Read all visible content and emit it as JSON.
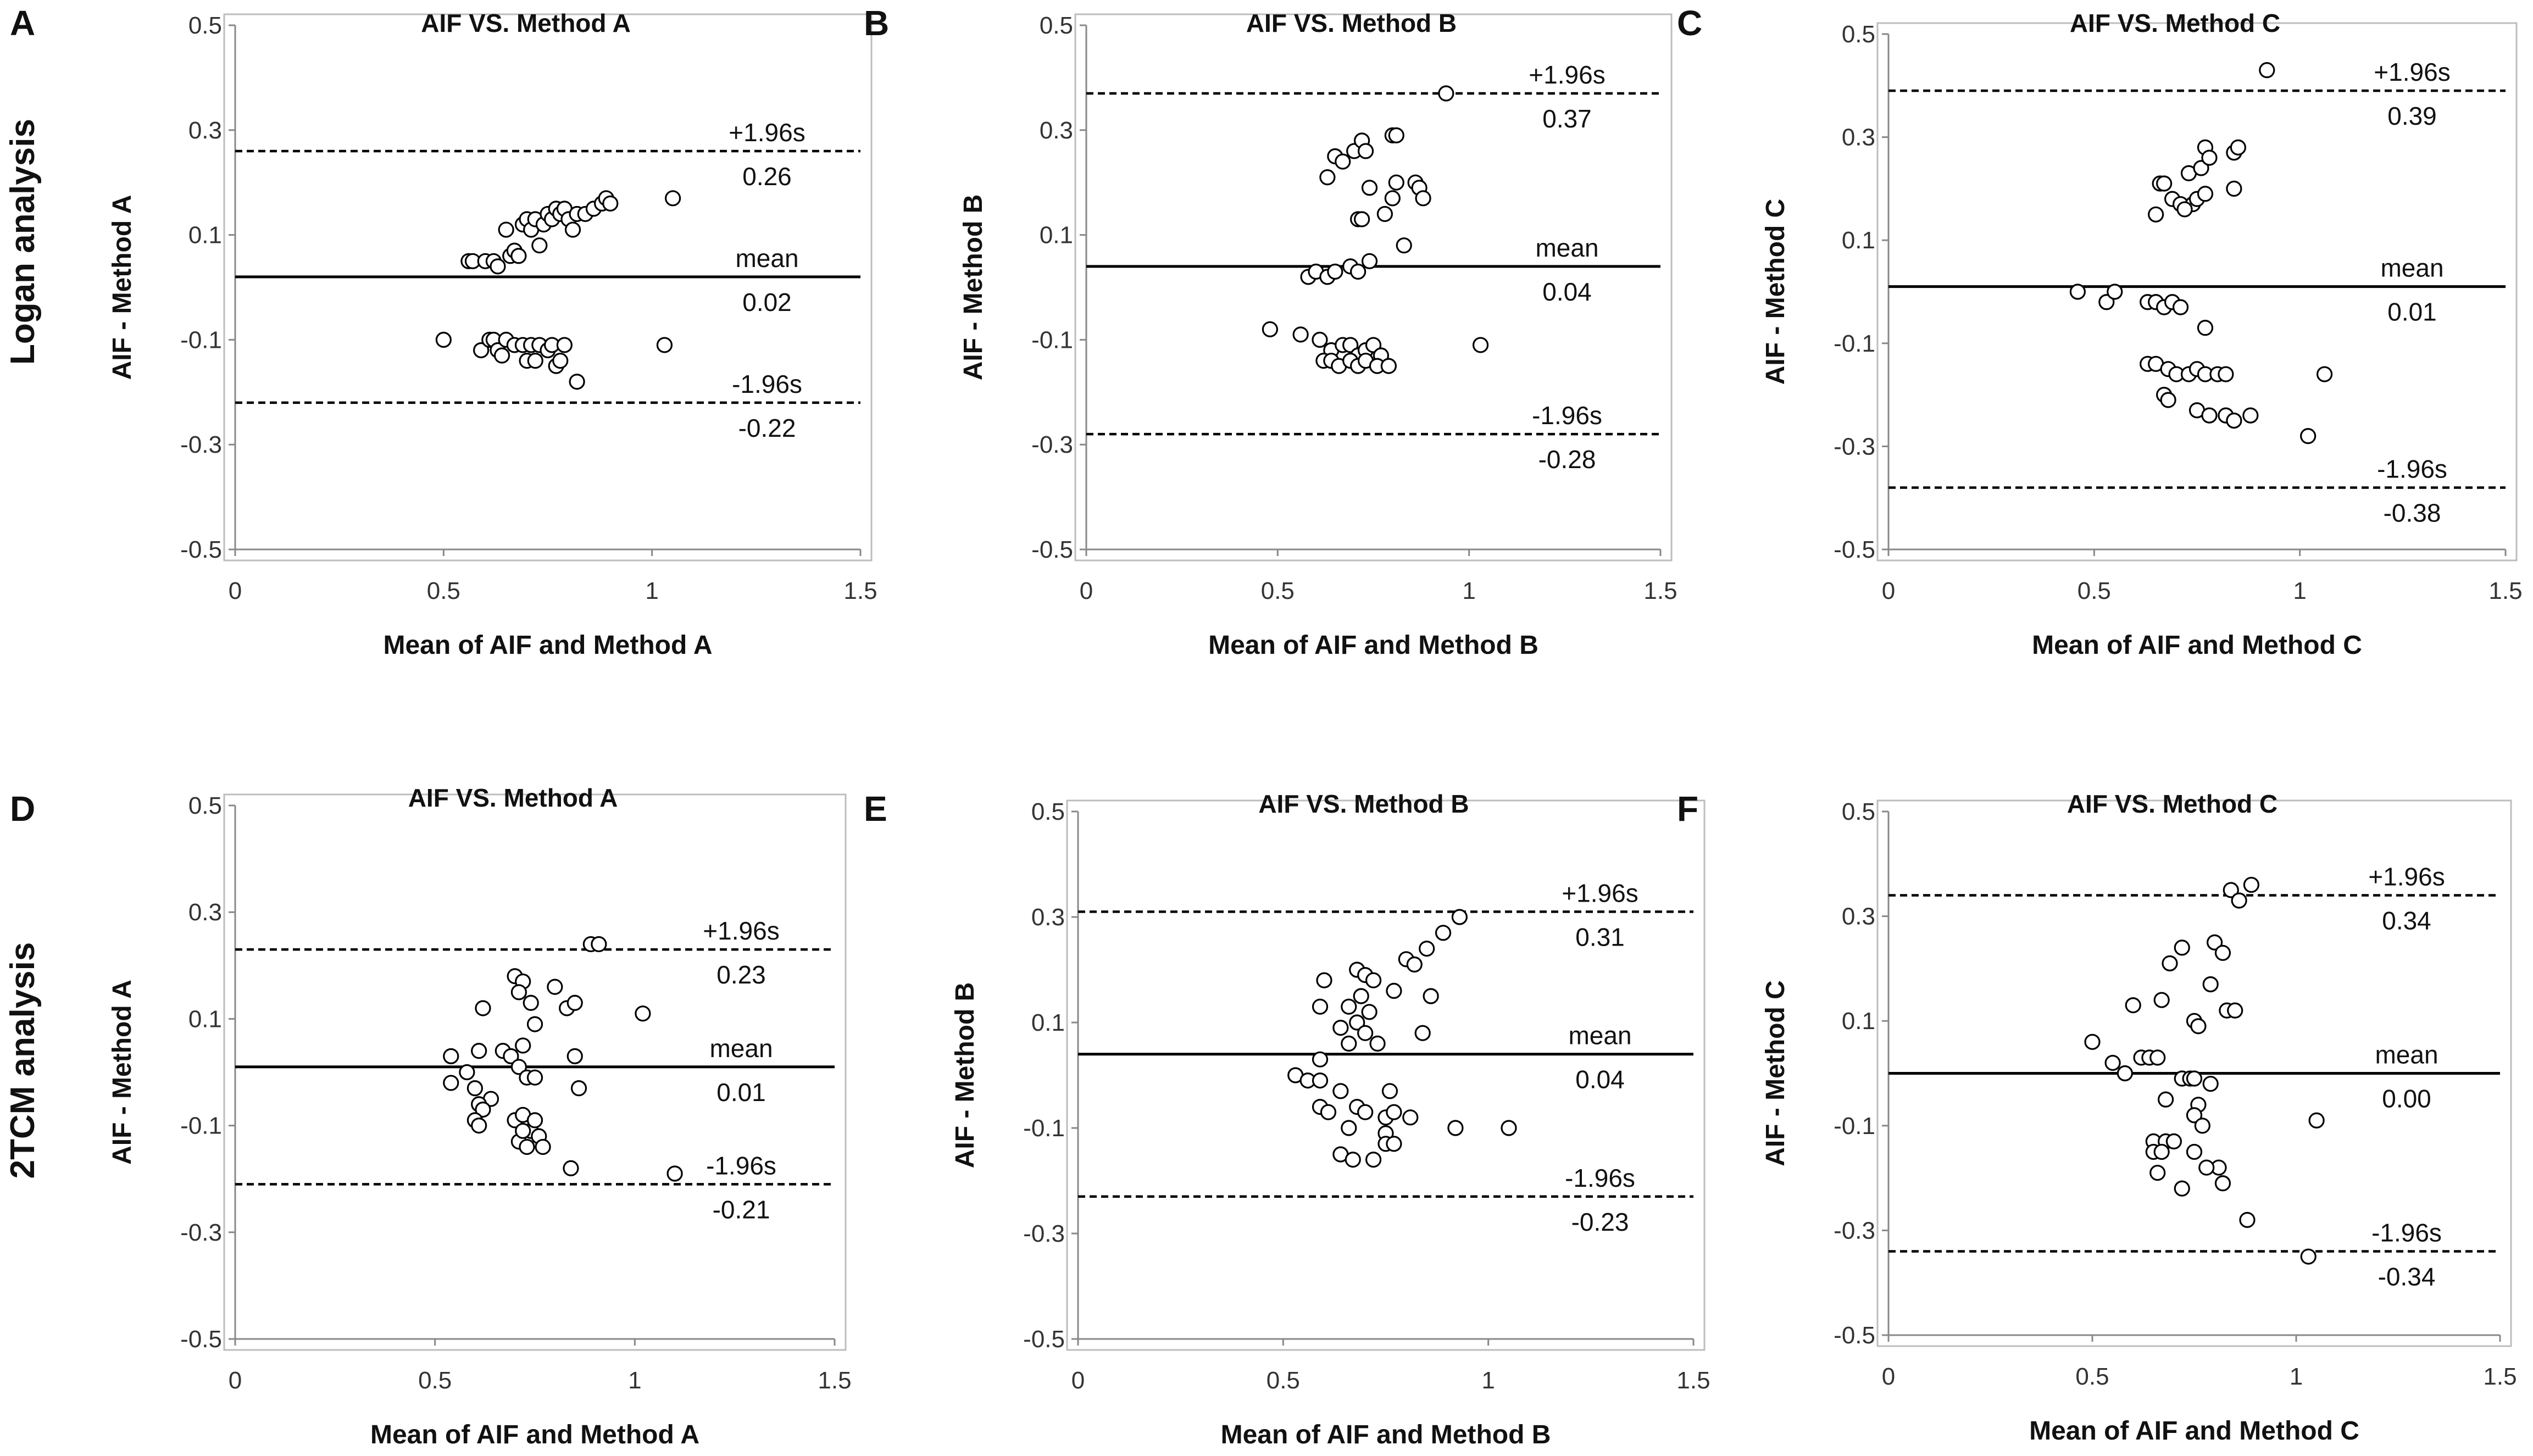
{
  "figure": {
    "row_labels": [
      "Logan analysis",
      "2TCM analysis"
    ]
  },
  "chart_data": [
    {
      "panel": "A",
      "type": "scatter",
      "row": "Logan analysis",
      "title": "AIF  VS. Method A",
      "xlabel": "Mean of AIF and Method A",
      "ylabel": "AIF - Method A",
      "xlim": [
        0,
        1.5
      ],
      "ylim": [
        -0.5,
        0.5
      ],
      "xticks": [
        "0",
        "0.5",
        "1",
        "1.5"
      ],
      "yticks": [
        "0.5",
        "0.3",
        "0.1",
        "-0.1",
        "-0.3",
        "-0.5"
      ],
      "mean": 0.02,
      "upper": 0.26,
      "lower": -0.22,
      "labels": {
        "upper": "+1.96s",
        "mean": "mean",
        "lower": "-1.96s",
        "upper_value": "0.26",
        "mean_value": "0.02",
        "lower_value": "-0.22"
      },
      "points": [
        [
          0.56,
          0.05
        ],
        [
          0.57,
          0.05
        ],
        [
          0.6,
          0.05
        ],
        [
          0.62,
          0.05
        ],
        [
          0.63,
          0.04
        ],
        [
          0.65,
          0.11
        ],
        [
          0.66,
          0.06
        ],
        [
          0.67,
          0.07
        ],
        [
          0.68,
          0.06
        ],
        [
          0.69,
          0.12
        ],
        [
          0.7,
          0.13
        ],
        [
          0.71,
          0.11
        ],
        [
          0.72,
          0.13
        ],
        [
          0.73,
          0.08
        ],
        [
          0.74,
          0.12
        ],
        [
          0.75,
          0.14
        ],
        [
          0.76,
          0.13
        ],
        [
          0.77,
          0.15
        ],
        [
          0.78,
          0.14
        ],
        [
          0.79,
          0.15
        ],
        [
          0.8,
          0.13
        ],
        [
          0.81,
          0.11
        ],
        [
          0.82,
          0.14
        ],
        [
          0.84,
          0.14
        ],
        [
          0.86,
          0.15
        ],
        [
          0.88,
          0.16
        ],
        [
          0.89,
          0.17
        ],
        [
          0.9,
          0.16
        ],
        [
          1.05,
          0.17
        ],
        [
          0.5,
          -0.1
        ],
        [
          0.59,
          -0.12
        ],
        [
          0.61,
          -0.1
        ],
        [
          0.62,
          -0.1
        ],
        [
          0.63,
          -0.12
        ],
        [
          0.64,
          -0.13
        ],
        [
          0.65,
          -0.1
        ],
        [
          0.67,
          -0.11
        ],
        [
          0.69,
          -0.11
        ],
        [
          0.7,
          -0.14
        ],
        [
          0.71,
          -0.11
        ],
        [
          0.72,
          -0.14
        ],
        [
          0.73,
          -0.11
        ],
        [
          0.75,
          -0.12
        ],
        [
          0.76,
          -0.11
        ],
        [
          0.77,
          -0.15
        ],
        [
          0.78,
          -0.14
        ],
        [
          0.79,
          -0.11
        ],
        [
          0.82,
          -0.18
        ],
        [
          1.03,
          -0.11
        ]
      ]
    },
    {
      "panel": "B",
      "type": "scatter",
      "row": "Logan analysis",
      "title": "AIF  VS. Method B",
      "xlabel": "Mean of AIF and Method B",
      "ylabel": "AIF - Method B",
      "xlim": [
        0,
        1.5
      ],
      "ylim": [
        -0.5,
        0.5
      ],
      "xticks": [
        "0",
        "0.5",
        "1",
        "1.5"
      ],
      "yticks": [
        "0.5",
        "0.3",
        "0.1",
        "-0.1",
        "-0.3",
        "-0.5"
      ],
      "mean": 0.04,
      "upper": 0.37,
      "lower": -0.28,
      "labels": {
        "upper": "+1.96s",
        "mean": "mean",
        "lower": "-1.96s",
        "upper_value": "0.37",
        "mean_value": "0.04",
        "lower_value": "-0.28"
      },
      "points": [
        [
          0.94,
          0.37
        ],
        [
          0.63,
          0.21
        ],
        [
          0.65,
          0.25
        ],
        [
          0.67,
          0.24
        ],
        [
          0.7,
          0.26
        ],
        [
          0.72,
          0.28
        ],
        [
          0.73,
          0.26
        ],
        [
          0.8,
          0.29
        ],
        [
          0.81,
          0.29
        ],
        [
          0.74,
          0.19
        ],
        [
          0.78,
          0.14
        ],
        [
          0.8,
          0.17
        ],
        [
          0.81,
          0.2
        ],
        [
          0.86,
          0.2
        ],
        [
          0.87,
          0.19
        ],
        [
          0.88,
          0.17
        ],
        [
          0.71,
          0.13
        ],
        [
          0.72,
          0.13
        ],
        [
          0.83,
          0.08
        ],
        [
          0.58,
          0.02
        ],
        [
          0.6,
          0.03
        ],
        [
          0.63,
          0.02
        ],
        [
          0.65,
          0.03
        ],
        [
          0.69,
          0.04
        ],
        [
          0.71,
          0.03
        ],
        [
          0.74,
          0.05
        ],
        [
          0.48,
          -0.08
        ],
        [
          0.56,
          -0.09
        ],
        [
          0.61,
          -0.1
        ],
        [
          0.64,
          -0.12
        ],
        [
          0.67,
          -0.11
        ],
        [
          0.69,
          -0.11
        ],
        [
          0.71,
          -0.13
        ],
        [
          0.73,
          -0.12
        ],
        [
          0.75,
          -0.11
        ],
        [
          0.77,
          -0.13
        ],
        [
          0.62,
          -0.14
        ],
        [
          0.64,
          -0.14
        ],
        [
          0.66,
          -0.15
        ],
        [
          0.69,
          -0.14
        ],
        [
          0.71,
          -0.15
        ],
        [
          0.73,
          -0.14
        ],
        [
          0.76,
          -0.15
        ],
        [
          0.79,
          -0.15
        ],
        [
          1.03,
          -0.11
        ]
      ]
    },
    {
      "panel": "C",
      "type": "scatter",
      "row": "Logan analysis",
      "title": "AIF  VS. Method C",
      "xlabel": "Mean of AIF and Method C",
      "ylabel": "AIF - Method C",
      "xlim": [
        0,
        1.5
      ],
      "ylim": [
        -0.5,
        0.5
      ],
      "xticks": [
        "0",
        "0.5",
        "1",
        "1.5"
      ],
      "yticks": [
        "0.5",
        "0.3",
        "0.1",
        "-0.1",
        "-0.3",
        "-0.5"
      ],
      "mean": 0.01,
      "upper": 0.39,
      "lower": -0.38,
      "labels": {
        "upper": "+1.96s",
        "mean": "mean",
        "lower": "-1.96s",
        "upper_value": "0.39",
        "mean_value": "0.01",
        "lower_value": "-0.38"
      },
      "points": [
        [
          0.92,
          0.43
        ],
        [
          0.77,
          0.28
        ],
        [
          0.84,
          0.27
        ],
        [
          0.85,
          0.28
        ],
        [
          0.66,
          0.21
        ],
        [
          0.67,
          0.21
        ],
        [
          0.73,
          0.23
        ],
        [
          0.76,
          0.24
        ],
        [
          0.78,
          0.26
        ],
        [
          0.69,
          0.18
        ],
        [
          0.71,
          0.17
        ],
        [
          0.74,
          0.17
        ],
        [
          0.75,
          0.18
        ],
        [
          0.77,
          0.19
        ],
        [
          0.84,
          0.2
        ],
        [
          0.65,
          0.15
        ],
        [
          0.72,
          0.16
        ],
        [
          0.46,
          0.0
        ],
        [
          0.53,
          -0.02
        ],
        [
          0.55,
          0.0
        ],
        [
          0.63,
          -0.02
        ],
        [
          0.65,
          -0.02
        ],
        [
          0.67,
          -0.03
        ],
        [
          0.69,
          -0.02
        ],
        [
          0.71,
          -0.03
        ],
        [
          0.77,
          -0.07
        ],
        [
          0.63,
          -0.14
        ],
        [
          0.65,
          -0.14
        ],
        [
          0.68,
          -0.15
        ],
        [
          0.7,
          -0.16
        ],
        [
          0.73,
          -0.16
        ],
        [
          0.75,
          -0.15
        ],
        [
          0.77,
          -0.16
        ],
        [
          0.8,
          -0.16
        ],
        [
          0.82,
          -0.16
        ],
        [
          0.67,
          -0.2
        ],
        [
          0.68,
          -0.21
        ],
        [
          0.75,
          -0.23
        ],
        [
          0.78,
          -0.24
        ],
        [
          0.82,
          -0.24
        ],
        [
          0.84,
          -0.25
        ],
        [
          0.88,
          -0.24
        ],
        [
          1.06,
          -0.16
        ],
        [
          1.02,
          -0.28
        ]
      ]
    },
    {
      "panel": "D",
      "type": "scatter",
      "row": "2TCM analysis",
      "title": "AIF  VS. Method A",
      "xlabel": "Mean of AIF and Method A",
      "ylabel": "AIF - Method A",
      "xlim": [
        0,
        1.5
      ],
      "ylim": [
        -0.5,
        0.5
      ],
      "xticks": [
        "0",
        "0.5",
        "1",
        "1.5"
      ],
      "yticks": [
        "0.5",
        "0.3",
        "0.1",
        "-0.1",
        "-0.3",
        "-0.5"
      ],
      "mean": 0.01,
      "upper": 0.23,
      "lower": -0.21,
      "labels": {
        "upper": "+1.96s",
        "mean": "mean",
        "lower": "-1.96s",
        "upper_value": "0.23",
        "mean_value": "0.01",
        "lower_value": "-0.21"
      },
      "points": [
        [
          0.89,
          0.24
        ],
        [
          0.91,
          0.24
        ],
        [
          0.7,
          0.18
        ],
        [
          0.72,
          0.17
        ],
        [
          0.8,
          0.16
        ],
        [
          0.71,
          0.15
        ],
        [
          0.74,
          0.13
        ],
        [
          0.83,
          0.12
        ],
        [
          0.85,
          0.13
        ],
        [
          1.02,
          0.11
        ],
        [
          0.62,
          0.12
        ],
        [
          0.75,
          0.09
        ],
        [
          0.67,
          0.04
        ],
        [
          0.72,
          0.05
        ],
        [
          0.54,
          0.03
        ],
        [
          0.61,
          0.04
        ],
        [
          0.69,
          0.03
        ],
        [
          0.85,
          0.03
        ],
        [
          0.71,
          0.01
        ],
        [
          0.58,
          0.0
        ],
        [
          0.54,
          -0.02
        ],
        [
          0.6,
          -0.03
        ],
        [
          0.64,
          -0.05
        ],
        [
          0.73,
          -0.01
        ],
        [
          0.75,
          -0.01
        ],
        [
          0.86,
          -0.03
        ],
        [
          0.61,
          -0.06
        ],
        [
          0.62,
          -0.07
        ],
        [
          0.6,
          -0.09
        ],
        [
          0.61,
          -0.1
        ],
        [
          0.7,
          -0.09
        ],
        [
          0.72,
          -0.08
        ],
        [
          0.74,
          -0.11
        ],
        [
          0.75,
          -0.09
        ],
        [
          0.76,
          -0.12
        ],
        [
          0.71,
          -0.13
        ],
        [
          0.73,
          -0.14
        ],
        [
          0.72,
          -0.11
        ],
        [
          0.77,
          -0.14
        ],
        [
          0.84,
          -0.18
        ],
        [
          1.1,
          -0.19
        ]
      ]
    },
    {
      "panel": "E",
      "type": "scatter",
      "row": "2TCM analysis",
      "title": "AIF  VS. Method B",
      "xlabel": "Mean of AIF and Method B",
      "ylabel": "AIF - Method B",
      "xlim": [
        0,
        1.5
      ],
      "ylim": [
        -0.5,
        0.5
      ],
      "xticks": [
        "0",
        "0.5",
        "1",
        "1.5"
      ],
      "yticks": [
        "0.5",
        "0.3",
        "0.1",
        "-0.1",
        "-0.3",
        "-0.5"
      ],
      "mean": 0.04,
      "upper": 0.31,
      "lower": -0.23,
      "labels": {
        "upper": "+1.96s",
        "mean": "mean",
        "lower": "-1.96s",
        "upper_value": "0.31",
        "mean_value": "0.04",
        "lower_value": "-0.23"
      },
      "points": [
        [
          0.93,
          0.3
        ],
        [
          0.89,
          0.27
        ],
        [
          0.85,
          0.24
        ],
        [
          0.8,
          0.22
        ],
        [
          0.82,
          0.21
        ],
        [
          0.68,
          0.2
        ],
        [
          0.7,
          0.19
        ],
        [
          0.72,
          0.18
        ],
        [
          0.6,
          0.18
        ],
        [
          0.77,
          0.16
        ],
        [
          0.69,
          0.15
        ],
        [
          0.86,
          0.15
        ],
        [
          0.59,
          0.13
        ],
        [
          0.66,
          0.13
        ],
        [
          0.71,
          0.12
        ],
        [
          0.64,
          0.09
        ],
        [
          0.68,
          0.1
        ],
        [
          0.7,
          0.08
        ],
        [
          0.84,
          0.08
        ],
        [
          0.66,
          0.06
        ],
        [
          0.73,
          0.06
        ],
        [
          0.59,
          0.03
        ],
        [
          0.53,
          0.0
        ],
        [
          0.56,
          -0.01
        ],
        [
          0.59,
          -0.01
        ],
        [
          0.64,
          -0.03
        ],
        [
          0.76,
          -0.03
        ],
        [
          0.59,
          -0.06
        ],
        [
          0.61,
          -0.07
        ],
        [
          0.68,
          -0.06
        ],
        [
          0.7,
          -0.07
        ],
        [
          0.75,
          -0.08
        ],
        [
          0.77,
          -0.07
        ],
        [
          0.81,
          -0.08
        ],
        [
          0.66,
          -0.1
        ],
        [
          0.75,
          -0.11
        ],
        [
          0.75,
          -0.13
        ],
        [
          0.77,
          -0.13
        ],
        [
          0.92,
          -0.1
        ],
        [
          1.05,
          -0.1
        ],
        [
          0.64,
          -0.15
        ],
        [
          0.67,
          -0.16
        ],
        [
          0.72,
          -0.16
        ]
      ]
    },
    {
      "panel": "F",
      "type": "scatter",
      "row": "2TCM analysis",
      "title": "AIF  VS. Method C",
      "xlabel": "Mean of AIF and Method C",
      "ylabel": "AIF - Method C",
      "xlim": [
        0,
        1.5
      ],
      "ylim": [
        -0.5,
        0.5
      ],
      "xticks": [
        "0",
        "0.5",
        "1",
        "1.5"
      ],
      "yticks": [
        "0.5",
        "0.3",
        "0.1",
        "-0.1",
        "-0.3",
        "-0.5"
      ],
      "mean": 0.0,
      "upper": 0.34,
      "lower": -0.34,
      "labels": {
        "upper": "+1.96s",
        "mean": "mean",
        "lower": "-1.96s",
        "upper_value": "0.34",
        "mean_value": "0.00",
        "lower_value": "-0.34"
      },
      "points": [
        [
          0.84,
          0.35
        ],
        [
          0.89,
          0.36
        ],
        [
          0.86,
          0.33
        ],
        [
          0.8,
          0.25
        ],
        [
          0.72,
          0.24
        ],
        [
          0.82,
          0.23
        ],
        [
          0.69,
          0.21
        ],
        [
          0.79,
          0.17
        ],
        [
          0.6,
          0.13
        ],
        [
          0.67,
          0.14
        ],
        [
          0.83,
          0.12
        ],
        [
          0.85,
          0.12
        ],
        [
          0.75,
          0.1
        ],
        [
          0.76,
          0.09
        ],
        [
          0.5,
          0.06
        ],
        [
          0.62,
          0.03
        ],
        [
          0.64,
          0.03
        ],
        [
          0.66,
          0.03
        ],
        [
          0.55,
          0.02
        ],
        [
          0.58,
          0.0
        ],
        [
          0.72,
          -0.01
        ],
        [
          0.74,
          -0.01
        ],
        [
          0.75,
          -0.01
        ],
        [
          0.79,
          -0.02
        ],
        [
          0.68,
          -0.05
        ],
        [
          0.76,
          -0.06
        ],
        [
          0.75,
          -0.08
        ],
        [
          0.77,
          -0.1
        ],
        [
          0.65,
          -0.13
        ],
        [
          0.68,
          -0.13
        ],
        [
          0.7,
          -0.13
        ],
        [
          0.65,
          -0.15
        ],
        [
          0.67,
          -0.15
        ],
        [
          0.75,
          -0.15
        ],
        [
          0.81,
          -0.18
        ],
        [
          0.78,
          -0.18
        ],
        [
          0.66,
          -0.19
        ],
        [
          0.82,
          -0.21
        ],
        [
          0.72,
          -0.22
        ],
        [
          0.88,
          -0.28
        ],
        [
          1.05,
          -0.09
        ],
        [
          1.03,
          -0.35
        ]
      ]
    }
  ]
}
